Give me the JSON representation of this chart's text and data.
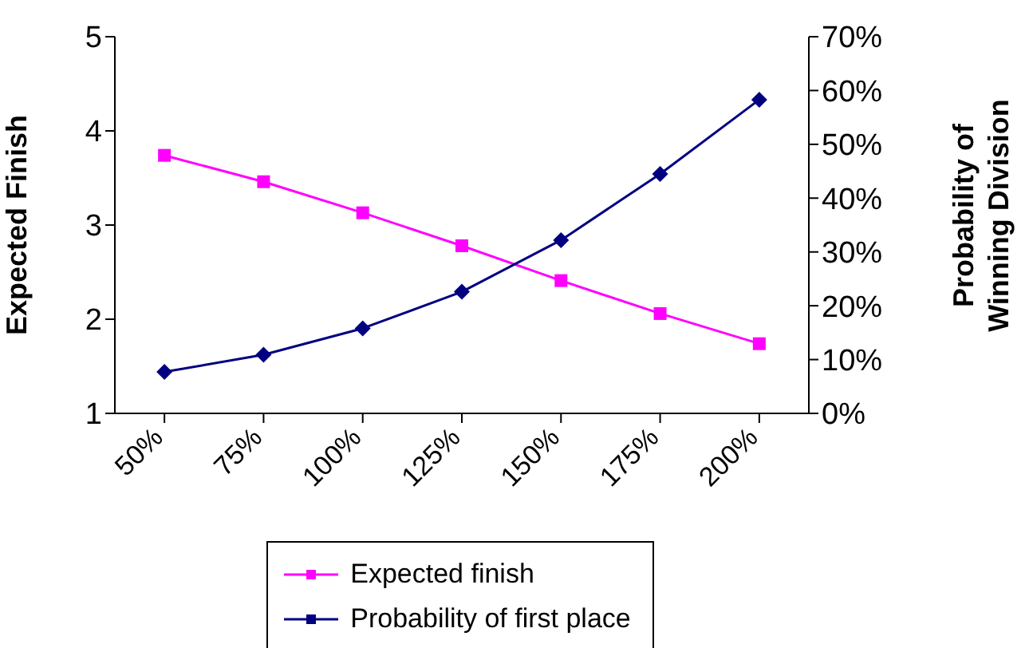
{
  "chart_data": {
    "type": "line",
    "ylabel": "Expected Finish",
    "y2label": "Probability of\nWinning Division",
    "categories": [
      "50%",
      "75%",
      "100%",
      "125%",
      "150%",
      "175%",
      "200%"
    ],
    "series": [
      {
        "name": "Expected finish",
        "color": "#ff00ff",
        "marker": "square",
        "values": [
          3.74,
          3.46,
          3.13,
          2.78,
          2.41,
          2.06,
          1.74
        ]
      },
      {
        "name": "Probability of first place",
        "color": "#000080",
        "marker": "diamond",
        "axis": "y2",
        "values": [
          7.7,
          10.9,
          15.8,
          22.6,
          32.2,
          44.5,
          58.3
        ]
      }
    ],
    "ylim": [
      1,
      5
    ],
    "yticks": [
      1,
      2,
      3,
      4,
      5
    ],
    "y2lim": [
      0,
      70
    ],
    "y2ticks": [
      {
        "value": 0,
        "label": "0%"
      },
      {
        "value": 10,
        "label": "10%"
      },
      {
        "value": 20,
        "label": "20%"
      },
      {
        "value": 30,
        "label": "30%"
      },
      {
        "value": 40,
        "label": "40%"
      },
      {
        "value": 50,
        "label": "50%"
      },
      {
        "value": 60,
        "label": "60%"
      },
      {
        "value": 70,
        "label": "70%"
      }
    ],
    "grid": false,
    "legend": "bottom"
  }
}
